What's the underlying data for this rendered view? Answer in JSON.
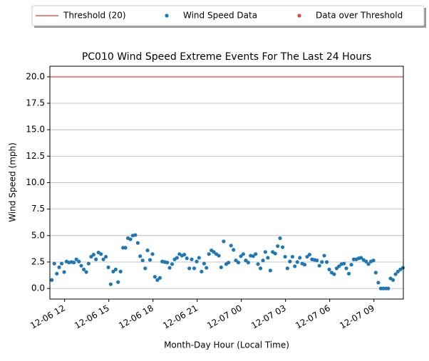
{
  "chart_data": {
    "type": "scatter",
    "title": "PC010 Wind Speed Extreme Events For The Last 24 Hours",
    "x_label": "Month-Day Hour (Local Time)",
    "y_label": "Wind Speed (mph)",
    "threshold": {
      "name": "Threshold (20)",
      "value": 20,
      "color": "#f07f7f"
    },
    "series": [
      {
        "name": "Wind Speed Data",
        "color": "#1f77b4",
        "x": [
          11.13,
          11.3,
          11.47,
          11.63,
          11.8,
          11.97,
          12.13,
          12.3,
          12.47,
          12.63,
          12.8,
          12.97,
          13.13,
          13.3,
          13.47,
          13.63,
          13.8,
          13.97,
          14.13,
          14.3,
          14.47,
          14.63,
          14.8,
          14.97,
          15.13,
          15.3,
          15.47,
          15.63,
          15.8,
          15.97,
          16.13,
          16.3,
          16.47,
          16.63,
          16.8,
          16.97,
          17.13,
          17.3,
          17.47,
          17.63,
          17.8,
          17.97,
          18.13,
          18.3,
          18.47,
          18.63,
          18.8,
          18.97,
          19.13,
          19.3,
          19.47,
          19.63,
          19.8,
          19.97,
          20.13,
          20.3,
          20.47,
          20.63,
          20.8,
          20.97,
          21.13,
          21.3,
          21.47,
          21.63,
          21.8,
          21.97,
          22.13,
          22.3,
          22.47,
          22.63,
          22.8,
          22.97,
          23.13,
          23.3,
          23.47,
          23.63,
          23.8,
          23.97,
          24.13,
          24.3,
          24.47,
          24.63,
          24.8,
          24.97,
          25.13,
          25.3,
          25.47,
          25.63,
          25.8,
          25.97,
          26.13,
          26.3,
          26.47,
          26.63,
          26.8,
          26.97,
          27.13,
          27.3,
          27.47,
          27.63,
          27.8,
          27.97,
          28.13,
          28.3,
          28.47,
          28.63,
          28.8,
          28.97,
          29.13,
          29.3,
          29.47,
          29.63,
          29.8,
          29.97,
          30.13,
          30.3,
          30.47,
          30.63,
          30.8,
          30.97,
          31.13,
          31.3,
          31.47,
          31.63,
          31.8,
          31.97,
          32.13,
          32.3,
          32.47,
          32.63,
          32.8,
          32.97,
          33.13,
          33.3,
          33.47,
          33.63,
          33.8,
          33.97,
          34.13,
          34.3,
          34.47,
          34.63,
          34.8,
          34.97
        ],
        "values": [
          0.8,
          2.35,
          1.4,
          2.0,
          2.35,
          1.55,
          2.55,
          2.45,
          2.5,
          2.45,
          2.75,
          2.55,
          2.15,
          1.8,
          1.55,
          2.35,
          3.0,
          3.2,
          2.75,
          3.4,
          3.25,
          2.75,
          3.0,
          2.0,
          0.4,
          1.6,
          1.8,
          0.6,
          1.6,
          3.85,
          3.85,
          4.75,
          4.65,
          5.0,
          5.05,
          4.3,
          3.05,
          2.65,
          1.9,
          3.6,
          2.7,
          3.25,
          1.1,
          0.8,
          1.0,
          2.55,
          2.5,
          2.45,
          1.95,
          2.3,
          2.75,
          2.9,
          3.25,
          3.1,
          3.2,
          2.85,
          1.9,
          2.75,
          1.9,
          2.55,
          2.9,
          1.6,
          2.35,
          1.95,
          3.25,
          3.6,
          3.45,
          3.25,
          3.1,
          2.0,
          4.45,
          2.3,
          2.45,
          4.05,
          3.65,
          2.65,
          2.45,
          3.05,
          3.25,
          2.65,
          2.45,
          3.1,
          3.05,
          3.25,
          2.3,
          1.9,
          2.65,
          3.45,
          2.9,
          1.7,
          3.45,
          3.3,
          4.0,
          4.75,
          3.9,
          3.0,
          1.9,
          2.55,
          3.0,
          2.1,
          2.5,
          2.9,
          2.35,
          2.25,
          3.0,
          3.2,
          2.75,
          2.7,
          2.65,
          2.15,
          2.5,
          3.1,
          2.5,
          1.8,
          1.5,
          1.35,
          1.9,
          2.1,
          2.3,
          2.35,
          1.9,
          1.4,
          2.25,
          2.75,
          2.75,
          2.85,
          2.9,
          2.7,
          2.55,
          2.3,
          2.55,
          2.65,
          1.5,
          0.55,
          0,
          0,
          0,
          0,
          0.95,
          0.8,
          1.35,
          1.6,
          1.8,
          1.95
        ]
      },
      {
        "name": "Data over Threshold",
        "color": "#d9484a",
        "x": [],
        "values": []
      }
    ],
    "xlim": [
      11.0,
      35.0
    ],
    "xticks": [
      {
        "value": 12,
        "label": "12-06 12"
      },
      {
        "value": 15,
        "label": "12-06 15"
      },
      {
        "value": 18,
        "label": "12-06 18"
      },
      {
        "value": 21,
        "label": "12-06 21"
      },
      {
        "value": 24,
        "label": "12-07 00"
      },
      {
        "value": 27,
        "label": "12-07 03"
      },
      {
        "value": 30,
        "label": "12-07 06"
      },
      {
        "value": 33,
        "label": "12-07 09"
      }
    ],
    "ylim": [
      -1,
      21
    ],
    "yticks": [
      {
        "value": 0,
        "label": "0.0"
      },
      2.5,
      {
        "value": 5,
        "label": "5.0"
      },
      7.5,
      {
        "value": 10,
        "label": "10.0"
      },
      12.5,
      {
        "value": 15,
        "label": "15.0"
      },
      17.5,
      {
        "value": 20,
        "label": "20.0"
      }
    ],
    "grid": true,
    "legend": "top"
  }
}
